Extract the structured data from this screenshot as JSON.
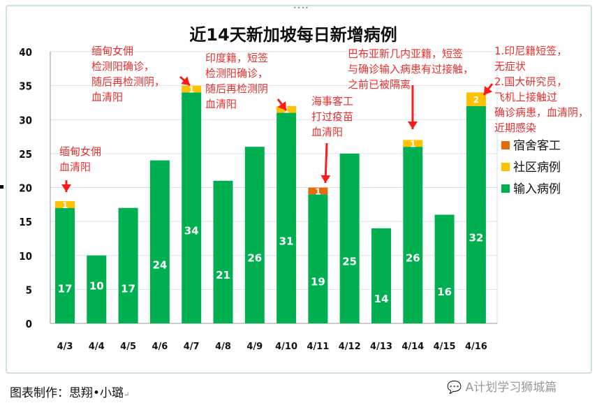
{
  "chart_data": {
    "type": "bar",
    "stacked": true,
    "title": "近14天新加坡每日新增病例",
    "xlabel": "",
    "ylabel": "",
    "ylim": [
      0,
      40
    ],
    "yticks": [
      0,
      5,
      10,
      15,
      20,
      25,
      30,
      35,
      40
    ],
    "grid": true,
    "legend_position": "right",
    "categories": [
      "4/3",
      "4/4",
      "4/5",
      "4/6",
      "4/7",
      "4/8",
      "4/9",
      "4/10",
      "4/11",
      "4/12",
      "4/13",
      "4/14",
      "4/15",
      "4/16"
    ],
    "series": [
      {
        "name": "输入病例",
        "color": "#00b050",
        "values": [
          17,
          10,
          17,
          24,
          34,
          21,
          26,
          31,
          19,
          25,
          14,
          26,
          16,
          32
        ]
      },
      {
        "name": "社区病例",
        "color": "#ffc000",
        "values": [
          1,
          0,
          0,
          0,
          1,
          0,
          0,
          1,
          0,
          0,
          0,
          1,
          0,
          2
        ]
      },
      {
        "name": "宿舍客工",
        "color": "#e46c0a",
        "values": [
          0,
          0,
          0,
          0,
          0,
          0,
          0,
          0,
          1,
          0,
          0,
          0,
          0,
          0
        ]
      }
    ],
    "legend": [
      "宿舍客工",
      "社区病例",
      "输入病例"
    ],
    "annotations": [
      {
        "category": "4/3",
        "lines": [
          "缅甸女佣",
          "血清阳"
        ]
      },
      {
        "category": "4/7",
        "lines": [
          "缅甸女佣",
          "检测阳确诊，",
          "随后再检测阴，",
          "血清阳"
        ]
      },
      {
        "category": "4/10",
        "lines": [
          "印度籍，短签",
          "检测阳确诊，",
          "随后再检测阴",
          "血清阳"
        ]
      },
      {
        "category": "4/11",
        "lines": [
          "海事客工",
          "打过疫苗",
          "血清阳"
        ]
      },
      {
        "category": "4/14",
        "lines": [
          "巴布亚新几内亚籍，短签",
          "与确诊输入病患有过接触，",
          "之前已被隔离"
        ]
      },
      {
        "category": "4/16",
        "lines": [
          "1.印尼籍短签，",
          "无症状",
          "2.国大研究员，",
          "飞机上接触过",
          "确诊病患，血清阴，",
          "近期感染"
        ]
      }
    ]
  },
  "footer": {
    "credit": "图表制作：思翔•小璐",
    "watermark": "A计划学习狮城篇",
    "watermark_icon": "wechat-icon"
  }
}
